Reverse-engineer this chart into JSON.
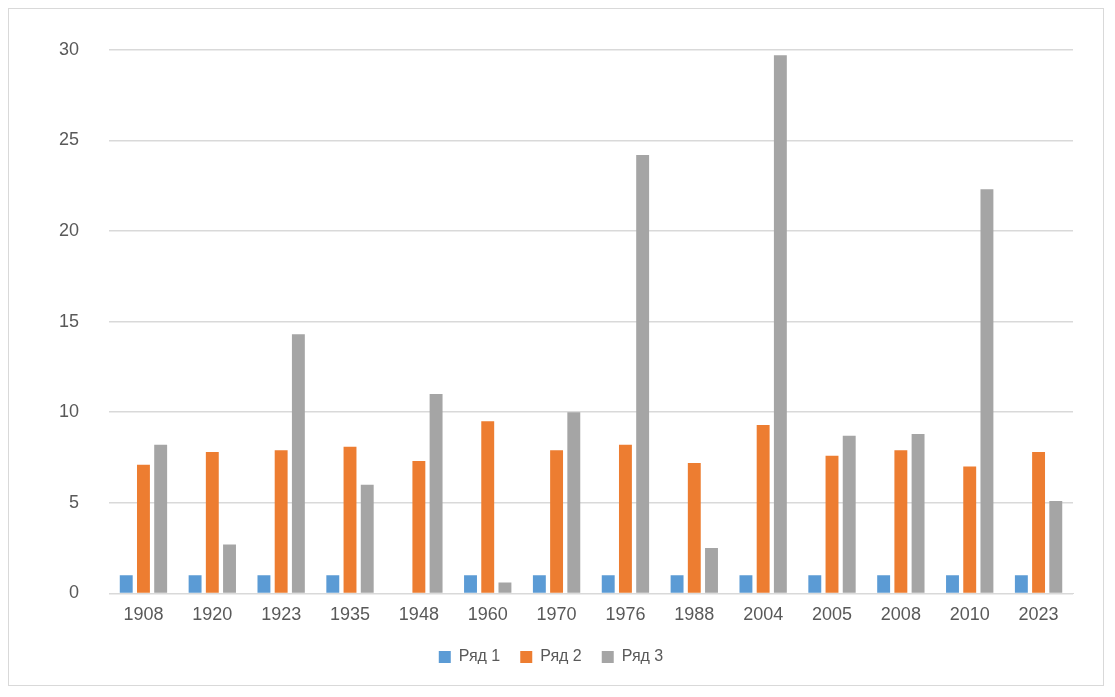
{
  "chart_data": {
    "type": "bar",
    "categories": [
      "1908",
      "1920",
      "1923",
      "1935",
      "1948",
      "1960",
      "1970",
      "1976",
      "1988",
      "2004",
      "2005",
      "2008",
      "2010",
      "2023"
    ],
    "series": [
      {
        "name": "Ряд 1",
        "color": "#5b9bd5",
        "values": [
          1,
          1,
          1,
          1,
          null,
          1,
          1,
          1,
          1,
          1,
          1,
          1,
          1,
          1
        ]
      },
      {
        "name": "Ряд 2",
        "color": "#ed7d31",
        "values": [
          7.1,
          7.8,
          7.9,
          8.1,
          7.3,
          9.5,
          7.9,
          8.2,
          7.2,
          9.3,
          7.6,
          7.9,
          7.0,
          7.8
        ]
      },
      {
        "name": "Ряд 3",
        "color": "#a5a5a5",
        "values": [
          8.2,
          2.7,
          14.3,
          6.0,
          11.0,
          0.6,
          10.0,
          24.2,
          2.5,
          29.7,
          8.7,
          8.8,
          22.3,
          5.1
        ]
      }
    ],
    "ylim": [
      0,
      30
    ],
    "yticks": [
      0,
      5,
      10,
      15,
      20,
      25,
      30
    ],
    "grid": "y",
    "legend": "bottom"
  }
}
